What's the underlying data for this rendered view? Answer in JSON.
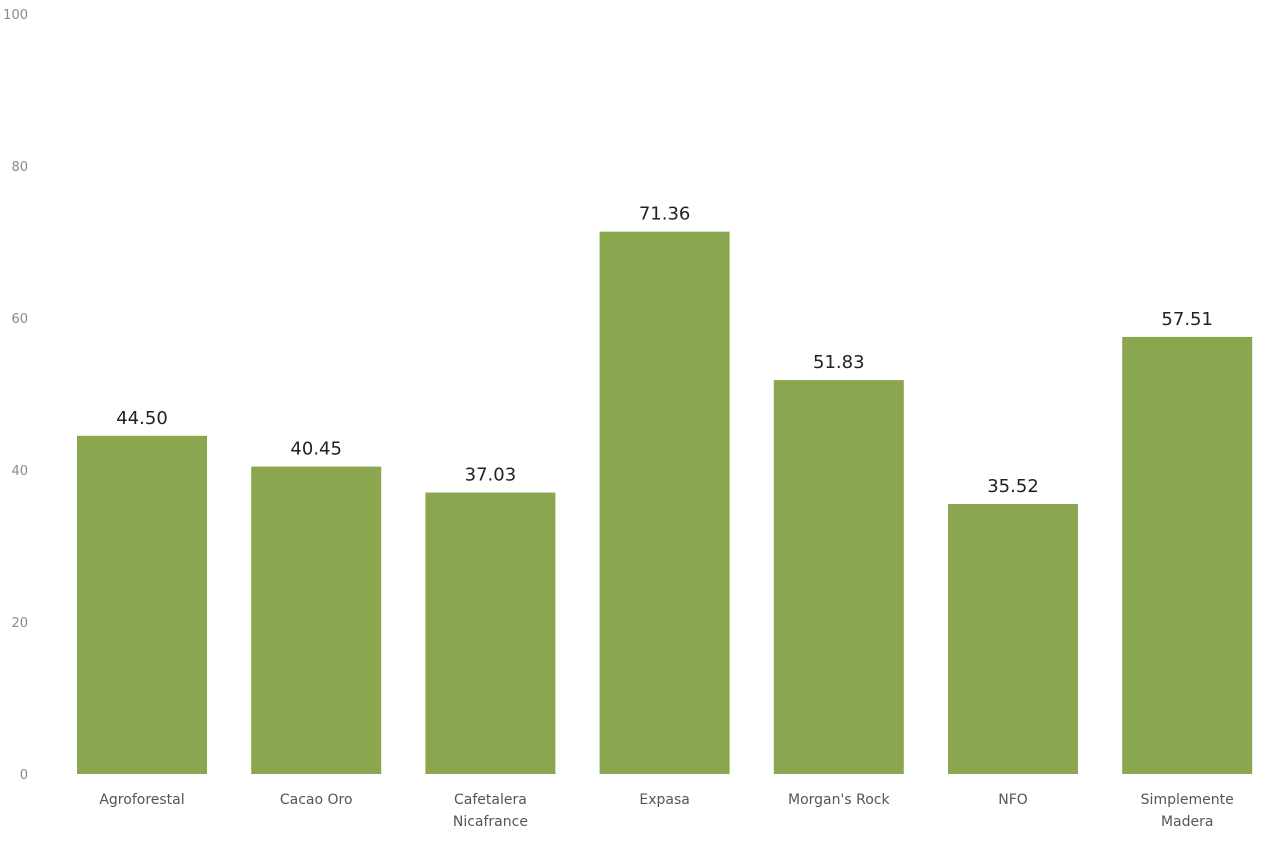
{
  "chart_data": {
    "type": "bar",
    "categories": [
      [
        "Agroforestal"
      ],
      [
        "Cacao Oro"
      ],
      [
        "Cafetalera",
        "Nicafrance"
      ],
      [
        "Expasa"
      ],
      [
        "Morgan's Rock"
      ],
      [
        "NFO"
      ],
      [
        "Simplemente",
        "Madera"
      ]
    ],
    "values": [
      44.5,
      40.45,
      37.03,
      71.36,
      51.83,
      35.52,
      57.51
    ],
    "value_labels": [
      "44.50",
      "40.45",
      "37.03",
      "71.36",
      "51.83",
      "35.52",
      "57.51"
    ],
    "y_ticks": [
      0,
      20,
      40,
      60,
      80,
      100
    ],
    "ylim": [
      0,
      100
    ],
    "title": "",
    "xlabel": "",
    "ylabel": "",
    "grid": false,
    "legend": "none",
    "bar_color": "#8aa64e"
  }
}
